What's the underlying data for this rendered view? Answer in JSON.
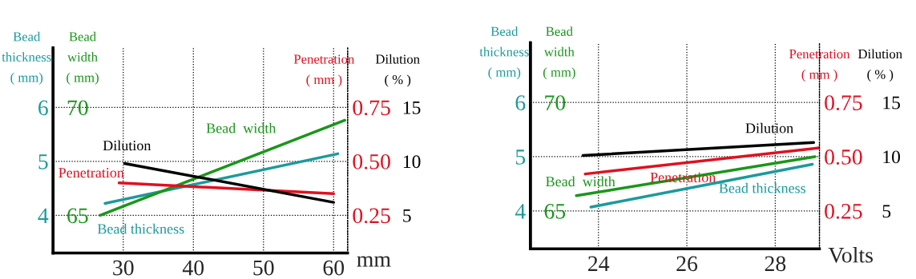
{
  "chart_data": [
    {
      "type": "line",
      "xlabel": "mm",
      "ylabel": "Bead\nthickness\n( mm)",
      "y2label": "Bead\nwidth\n( mm)",
      "xlim": [
        20,
        62
      ],
      "xticks": [
        30,
        40,
        50,
        60
      ],
      "ylim": [
        3.3,
        7.1
      ],
      "yticks": [
        4,
        5,
        6
      ],
      "y2lim": [
        63.25,
        72.75
      ],
      "y2ticks": [
        65,
        70
      ],
      "grid": true,
      "series": [
        {
          "name": "Bead thickness",
          "color": "#1c9a9c",
          "x": [
            27.4,
            60.6
          ],
          "values": [
            4.22,
            5.14
          ]
        },
        {
          "name": "Bead  width",
          "axis": "y2",
          "color": "#1a961a",
          "x": [
            26.7,
            61.6
          ],
          "values": [
            65.0,
            69.4
          ]
        }
      ]
    },
    {
      "type": "line",
      "ylabel": "Penetration\n( mm )",
      "y2label": "Dilution\n( % )",
      "tick_labels": "y",
      "xlim": [
        20,
        62
      ],
      "ylim": [
        0.075,
        1.025
      ],
      "yticks": [
        {
          "value": 0.25,
          "label": "0.25"
        },
        {
          "value": 0.5,
          "label": "0.50"
        },
        {
          "value": 0.75,
          "label": "0.75"
        }
      ],
      "y2lim": [
        1.5,
        20.5
      ],
      "y2ticks": [
        5,
        10,
        15
      ],
      "series": [
        {
          "name": "Penetration",
          "color": "#e01020",
          "x": [
            29.4,
            60
          ],
          "values": [
            0.4,
            0.35
          ]
        },
        {
          "name": "Dilution",
          "axis": "y2",
          "color": "#000000",
          "x": [
            30.2,
            60
          ],
          "values": [
            9.8,
            6.2
          ]
        }
      ]
    },
    {
      "type": "line",
      "xlabel": "Volts",
      "ylabel": "Bead\nthickness\n( mm)",
      "y2label": "Bead\nwidth\n( mm)",
      "xlim": [
        22.46,
        29.0
      ],
      "xticks": [
        24,
        26,
        28
      ],
      "ylim": [
        3.3,
        7.1
      ],
      "yticks": [
        4,
        5,
        6
      ],
      "y2lim": [
        63.25,
        72.75
      ],
      "y2ticks": [
        65,
        70
      ],
      "grid": true,
      "series": [
        {
          "name": "Bead thickness",
          "color": "#1c9a9c",
          "x": [
            23.83,
            28.84
          ],
          "values": [
            4.07,
            4.86
          ]
        },
        {
          "name": "Bead  width",
          "axis": "y2",
          "color": "#1a961a",
          "x": [
            23.5,
            28.9
          ],
          "values": [
            65.7,
            67.5
          ]
        }
      ]
    },
    {
      "type": "line",
      "ylabel": "Penetration\n( mm )",
      "y2label": "Dilution\n( % )",
      "tick_labels": "y",
      "xlim": [
        22.46,
        29.0
      ],
      "ylim": [
        0.075,
        1.025
      ],
      "yticks": [
        {
          "value": 0.25,
          "label": "0.25"
        },
        {
          "value": 0.5,
          "label": "0.50"
        },
        {
          "value": 0.75,
          "label": "0.75"
        }
      ],
      "y2lim": [
        1.5,
        20.5
      ],
      "y2ticks": [
        5,
        10,
        15
      ],
      "series": [
        {
          "name": "Penetration",
          "color": "#e01020",
          "x": [
            23.7,
            28.98
          ],
          "values": [
            0.42,
            0.54
          ]
        },
        {
          "name": "Dilution",
          "axis": "y2",
          "color": "#000000",
          "x": [
            23.65,
            28.87
          ],
          "values": [
            10.1,
            11.3
          ]
        }
      ]
    }
  ]
}
